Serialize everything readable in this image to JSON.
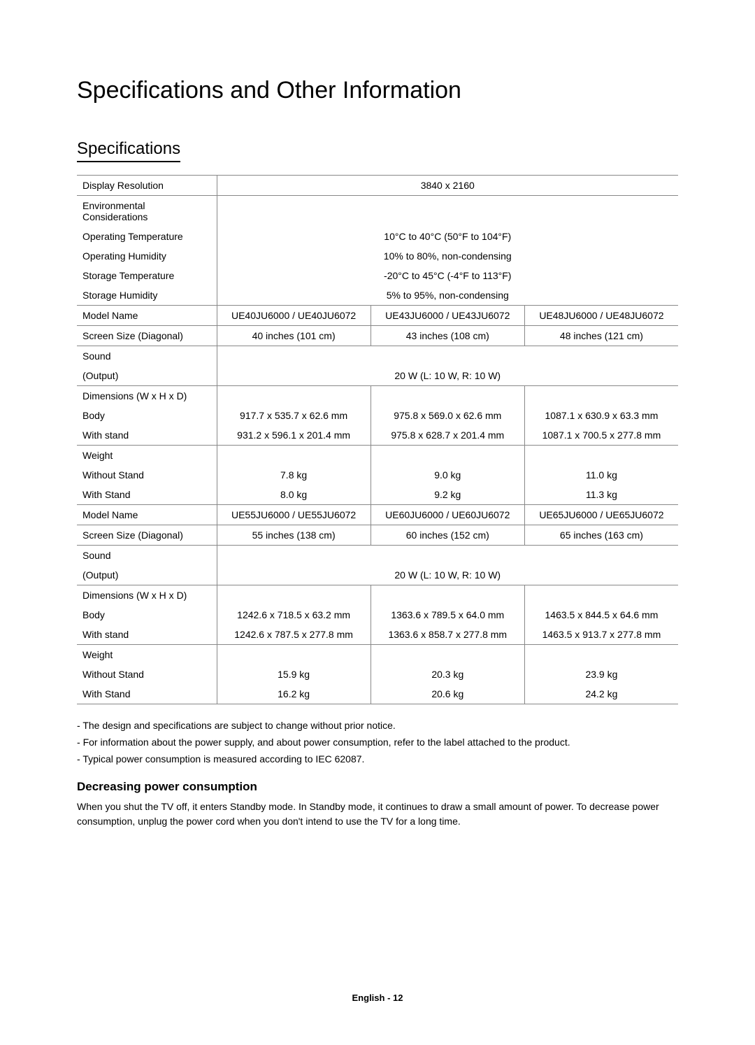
{
  "title": "Specifications and Other Information",
  "subtitle": "Specifications",
  "rows": {
    "display_res_label": "Display Resolution",
    "display_res_value": "3840 x 2160",
    "env_label": "Environmental Considerations",
    "op_temp_label": "Operating Temperature",
    "op_temp_value": "10°C to 40°C (50°F to 104°F)",
    "op_hum_label": "Operating Humidity",
    "op_hum_value": "10% to 80%, non-condensing",
    "st_temp_label": "Storage Temperature",
    "st_temp_value": "-20°C to 45°C (-4°F to 113°F)",
    "st_hum_label": "Storage Humidity",
    "st_hum_value": "5% to 95%, non-condensing",
    "model_name_label": "Model Name",
    "model1_a": "UE40JU6000 / UE40JU6072",
    "model1_b": "UE43JU6000 / UE43JU6072",
    "model1_c": "UE48JU6000 / UE48JU6072",
    "screen_size_label": "Screen Size (Diagonal)",
    "screen1_a": "40 inches (101 cm)",
    "screen1_b": "43 inches (108 cm)",
    "screen1_c": "48 inches (121 cm)",
    "sound_label": "Sound",
    "output_label": "(Output)",
    "output_value": "20 W (L: 10 W, R: 10 W)",
    "dim_label": "Dimensions (W x H x D)",
    "body_label": "Body",
    "body1_a": "917.7 x 535.7 x 62.6 mm",
    "body1_b": "975.8 x 569.0 x 62.6 mm",
    "body1_c": "1087.1 x 630.9 x 63.3 mm",
    "stand_label": "With stand",
    "stand1_a": "931.2 x 596.1 x 201.4 mm",
    "stand1_b": "975.8 x 628.7 x 201.4 mm",
    "stand1_c": "1087.1 x 700.5 x 277.8 mm",
    "weight_label": "Weight",
    "wostand_label": "Without Stand",
    "wo1_a": "7.8 kg",
    "wo1_b": "9.0 kg",
    "wo1_c": "11.0 kg",
    "wstand_label": "With Stand",
    "ws1_a": "8.0 kg",
    "ws1_b": "9.2 kg",
    "ws1_c": "11.3 kg",
    "model2_a": "UE55JU6000 / UE55JU6072",
    "model2_b": "UE60JU6000 / UE60JU6072",
    "model2_c": "UE65JU6000 / UE65JU6072",
    "screen2_a": "55 inches (138 cm)",
    "screen2_b": "60 inches (152 cm)",
    "screen2_c": "65 inches (163 cm)",
    "body2_a": "1242.6 x 718.5 x 63.2 mm",
    "body2_b": "1363.6 x 789.5 x 64.0 mm",
    "body2_c": "1463.5 x 844.5 x 64.6 mm",
    "stand2_a": "1242.6 x 787.5 x 277.8 mm",
    "stand2_b": "1363.6 x 858.7 x 277.8 mm",
    "stand2_c": "1463.5 x 913.7 x 277.8 mm",
    "wo2_a": "15.9 kg",
    "wo2_b": "20.3 kg",
    "wo2_c": "23.9 kg",
    "ws2_a": "16.2 kg",
    "ws2_b": "20.6 kg",
    "ws2_c": "24.2 kg"
  },
  "notes": {
    "n1": "The design and specifications are subject to change without prior notice.",
    "n2": "For information about the power supply, and about power consumption, refer to the label attached to the product.",
    "n3": "Typical power consumption is measured according to IEC 62087."
  },
  "power_heading": "Decreasing power consumption",
  "power_text": "When you shut the TV off, it enters Standby mode. In Standby mode, it continues to draw a small amount of power. To decrease power consumption, unplug the power cord when you don't intend to use the TV for a long time.",
  "footer": "English - 12"
}
